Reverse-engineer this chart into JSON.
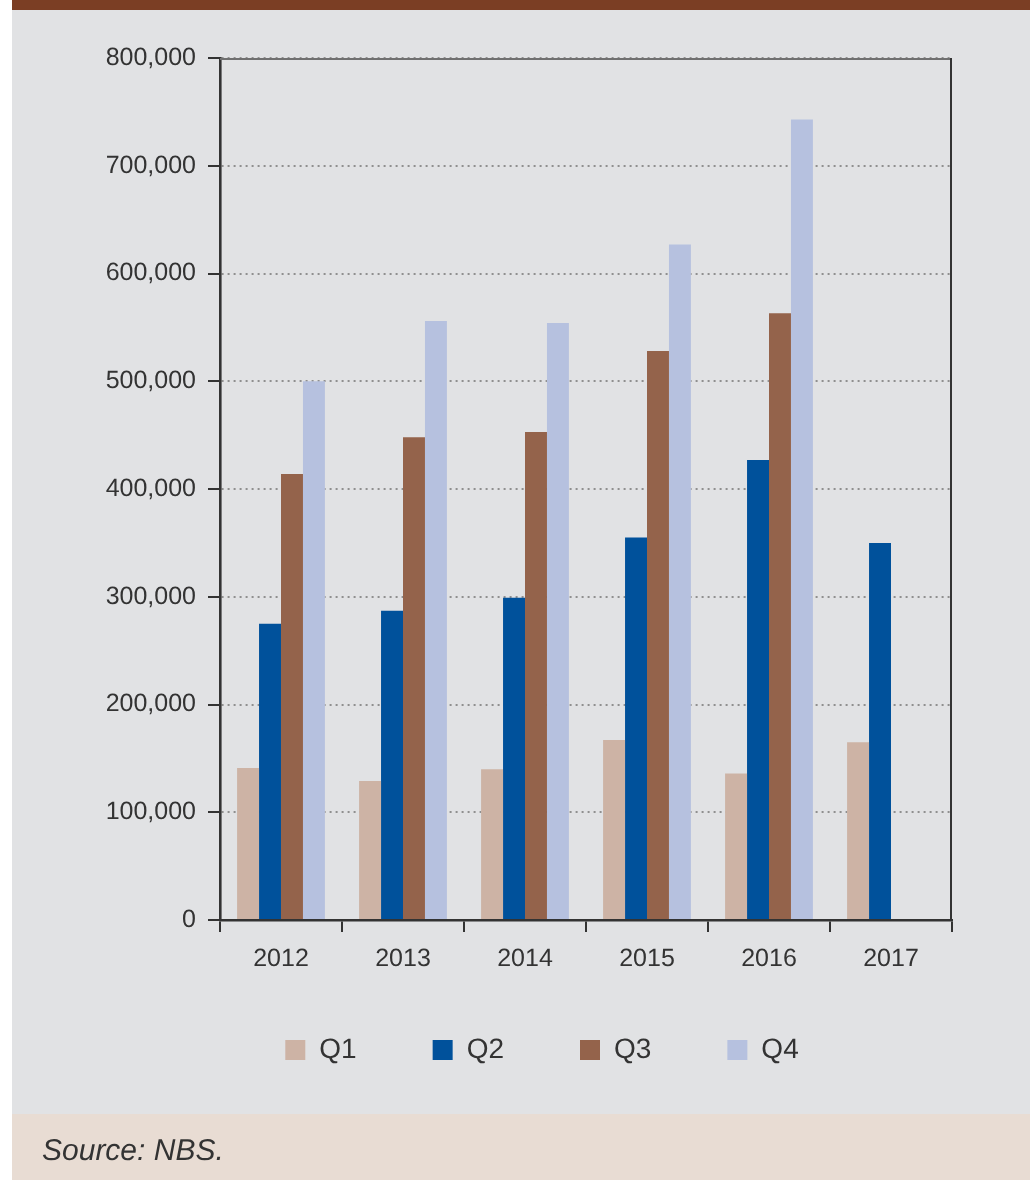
{
  "chart_data": {
    "type": "bar",
    "categories": [
      "2012",
      "2013",
      "2014",
      "2015",
      "2016",
      "2017"
    ],
    "series": [
      {
        "name": "Q1",
        "color": "#cdb3a5",
        "values": [
          141000,
          129000,
          140000,
          167000,
          136000,
          165000
        ]
      },
      {
        "name": "Q2",
        "color": "#00519b",
        "values": [
          275000,
          287000,
          299000,
          355000,
          427000,
          350000
        ]
      },
      {
        "name": "Q3",
        "color": "#94634b",
        "values": [
          414000,
          448000,
          453000,
          528000,
          563000,
          null
        ]
      },
      {
        "name": "Q4",
        "color": "#b6c1df",
        "values": [
          500000,
          556000,
          554000,
          627000,
          743000,
          null
        ]
      }
    ],
    "ylim": [
      0,
      800000
    ],
    "yticks": [
      0,
      {
        "value": 100000,
        "label": "100,000"
      },
      {
        "value": 200000,
        "label": "200,000"
      },
      {
        "value": 300000,
        "label": "300,000"
      },
      {
        "value": 400000,
        "label": "400,000"
      },
      {
        "value": 500000,
        "label": "500,000"
      },
      {
        "value": 600000,
        "label": "600,000"
      },
      {
        "value": 700000,
        "label": "700,000"
      },
      {
        "value": 800000,
        "label": "800,000"
      }
    ],
    "grid": "y",
    "legend": "bottom",
    "annotations": [
      "Source: NBS."
    ]
  }
}
